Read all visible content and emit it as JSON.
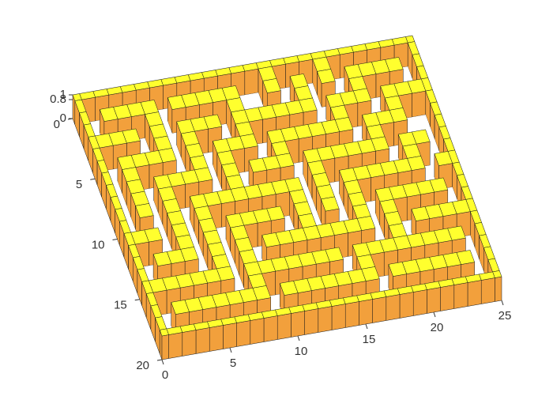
{
  "chart_data": {
    "type": "surface",
    "xlim": [
      0,
      25
    ],
    "xticks": [
      0,
      5,
      10,
      15,
      20,
      25
    ],
    "ylim": [
      0,
      20
    ],
    "yticks": [
      0,
      5,
      10,
      15,
      20
    ],
    "zlim": [
      0,
      1
    ],
    "zticks": [
      0,
      0.8,
      1
    ],
    "color": "#ffff2e",
    "side_color": "#f2a03c",
    "edge_color": "#1a1a1a",
    "z": [
      [
        1,
        1,
        1,
        1,
        1,
        1,
        1,
        1,
        1,
        1,
        1,
        1,
        1,
        1,
        1,
        1,
        1,
        1,
        1,
        1,
        1,
        1,
        1,
        1,
        1,
        1
      ],
      [
        1,
        0,
        0,
        0,
        0,
        0,
        0,
        0,
        0,
        0,
        0,
        0,
        0,
        0,
        1,
        0,
        0,
        0,
        1,
        0,
        0,
        0,
        0,
        0,
        0,
        1
      ],
      [
        1,
        0,
        1,
        1,
        1,
        1,
        0,
        1,
        1,
        1,
        1,
        1,
        0,
        0,
        1,
        0,
        1,
        0,
        1,
        0,
        1,
        1,
        1,
        1,
        0,
        1
      ],
      [
        1,
        0,
        0,
        0,
        0,
        1,
        0,
        0,
        0,
        0,
        0,
        1,
        0,
        0,
        0,
        0,
        1,
        0,
        0,
        0,
        1,
        0,
        0,
        0,
        0,
        1
      ],
      [
        1,
        1,
        1,
        1,
        0,
        1,
        0,
        1,
        1,
        1,
        0,
        1,
        1,
        1,
        1,
        1,
        1,
        0,
        1,
        1,
        1,
        0,
        1,
        1,
        1,
        1
      ],
      [
        1,
        0,
        0,
        0,
        0,
        1,
        0,
        1,
        0,
        0,
        0,
        1,
        0,
        0,
        0,
        0,
        0,
        0,
        1,
        0,
        0,
        0,
        1,
        0,
        0,
        1
      ],
      [
        1,
        0,
        1,
        1,
        1,
        1,
        0,
        1,
        0,
        1,
        1,
        1,
        0,
        1,
        1,
        1,
        1,
        1,
        1,
        0,
        1,
        1,
        1,
        0,
        0,
        1
      ],
      [
        1,
        0,
        1,
        0,
        0,
        0,
        0,
        1,
        0,
        1,
        0,
        0,
        0,
        1,
        0,
        0,
        0,
        0,
        0,
        0,
        1,
        0,
        0,
        0,
        0,
        1
      ],
      [
        1,
        0,
        1,
        0,
        1,
        1,
        1,
        1,
        0,
        1,
        0,
        1,
        1,
        1,
        0,
        1,
        1,
        1,
        1,
        1,
        1,
        0,
        1,
        1,
        0,
        1
      ],
      [
        1,
        0,
        1,
        0,
        1,
        0,
        0,
        0,
        0,
        1,
        0,
        0,
        0,
        0,
        0,
        1,
        0,
        0,
        0,
        0,
        0,
        0,
        1,
        0,
        0,
        1
      ],
      [
        1,
        0,
        1,
        0,
        1,
        0,
        1,
        1,
        1,
        1,
        1,
        1,
        1,
        1,
        0,
        1,
        0,
        1,
        1,
        1,
        1,
        1,
        1,
        0,
        1,
        1
      ],
      [
        1,
        0,
        0,
        0,
        1,
        0,
        1,
        0,
        0,
        0,
        0,
        0,
        0,
        1,
        0,
        1,
        0,
        1,
        0,
        0,
        0,
        0,
        0,
        0,
        0,
        1
      ],
      [
        1,
        1,
        1,
        0,
        1,
        0,
        1,
        0,
        1,
        1,
        1,
        1,
        0,
        1,
        0,
        1,
        0,
        1,
        0,
        1,
        1,
        1,
        1,
        1,
        0,
        1
      ],
      [
        1,
        0,
        0,
        0,
        1,
        0,
        1,
        0,
        1,
        0,
        0,
        0,
        0,
        1,
        0,
        0,
        0,
        1,
        0,
        1,
        0,
        0,
        0,
        0,
        0,
        1
      ],
      [
        1,
        0,
        1,
        1,
        1,
        0,
        1,
        0,
        1,
        0,
        1,
        1,
        1,
        1,
        1,
        1,
        1,
        1,
        0,
        1,
        0,
        1,
        1,
        1,
        1,
        1
      ],
      [
        1,
        0,
        0,
        0,
        0,
        0,
        1,
        0,
        1,
        0,
        0,
        0,
        0,
        0,
        0,
        0,
        0,
        0,
        0,
        1,
        0,
        0,
        0,
        0,
        0,
        1
      ],
      [
        1,
        1,
        1,
        1,
        1,
        1,
        1,
        0,
        1,
        1,
        1,
        1,
        1,
        1,
        1,
        0,
        1,
        1,
        1,
        1,
        1,
        1,
        1,
        1,
        0,
        1
      ],
      [
        1,
        0,
        0,
        0,
        0,
        0,
        0,
        0,
        1,
        0,
        0,
        0,
        0,
        0,
        0,
        0,
        1,
        0,
        0,
        0,
        0,
        0,
        0,
        0,
        0,
        1
      ],
      [
        1,
        0,
        1,
        1,
        1,
        1,
        1,
        1,
        1,
        0,
        1,
        1,
        1,
        1,
        1,
        1,
        1,
        0,
        1,
        1,
        1,
        1,
        1,
        1,
        0,
        1
      ],
      [
        1,
        0,
        0,
        0,
        0,
        0,
        0,
        0,
        0,
        0,
        0,
        0,
        0,
        0,
        0,
        0,
        0,
        0,
        0,
        0,
        0,
        0,
        0,
        0,
        0,
        1
      ],
      [
        1,
        1,
        1,
        1,
        1,
        1,
        1,
        1,
        1,
        1,
        1,
        1,
        1,
        1,
        1,
        1,
        1,
        1,
        1,
        1,
        1,
        1,
        1,
        1,
        1,
        1
      ]
    ]
  }
}
